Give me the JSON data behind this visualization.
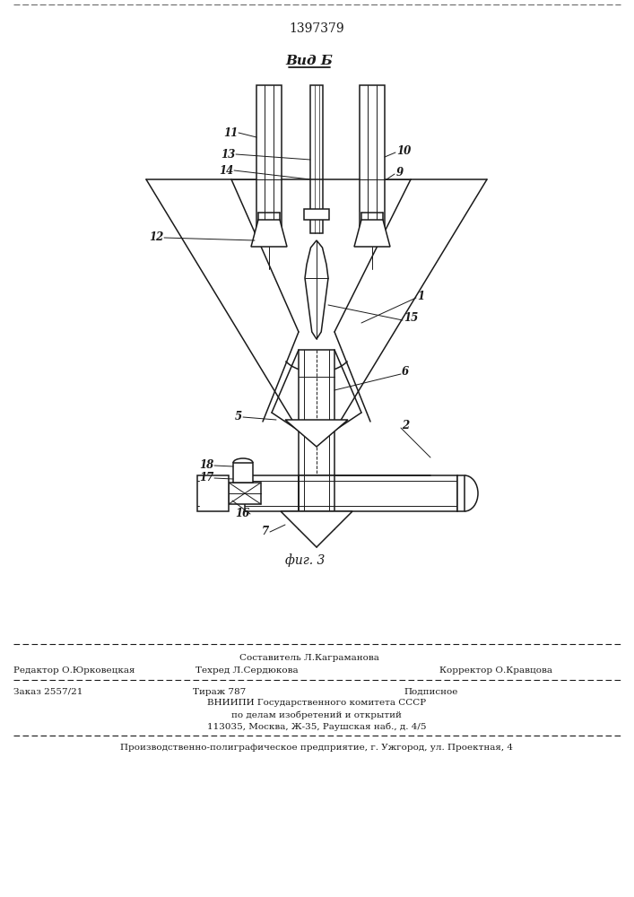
{
  "patent_number": "1397379",
  "view_label": "Вид Б",
  "fig_label": "фиг. 3",
  "bg_color": "#ffffff",
  "line_color": "#1a1a1a",
  "footer": {
    "line1_center": "Составитель Л.Каграманова",
    "line2_left": "Редактор О.Юрковецкая",
    "line2_center": "Техред Л.Сердюкова",
    "line2_right": "Корректор О.Кравцова",
    "line3_left": "Заказ 2557/21",
    "line3_center": "Тираж 787",
    "line3_right": "Подписное",
    "line4": "ВНИИПИ Государственного комитета СССР",
    "line5": "по делам изобретений и открытий",
    "line6": "113035, Москва, Ж-35, Раушская наб., д. 4/5",
    "line7": "Производственно-полиграфическое предприятие, г. Ужгород, ул. Проектная, 4"
  }
}
